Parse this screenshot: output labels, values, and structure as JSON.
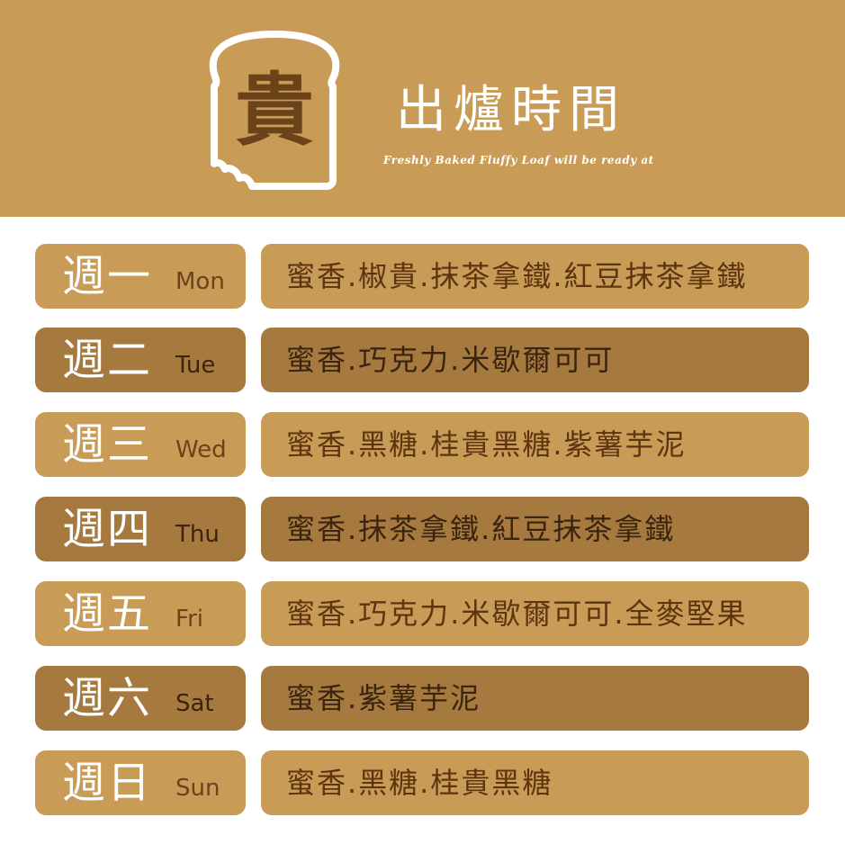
{
  "header": {
    "logo_char": "貴",
    "title": "出爐時間",
    "subtitle": "Freshly Baked Fluffy Loaf will be ready at"
  },
  "schedule": [
    {
      "day_zh": "週一",
      "day_en": "Mon",
      "menu": "蜜香.椒貴.抹茶拿鐵.紅豆抹茶拿鐵",
      "tone": "light"
    },
    {
      "day_zh": "週二",
      "day_en": "Tue",
      "menu": "蜜香.巧克力.米歇爾可可",
      "tone": "dark"
    },
    {
      "day_zh": "週三",
      "day_en": "Wed",
      "menu": "蜜香.黑糖.桂貴黑糖.紫薯芋泥",
      "tone": "light"
    },
    {
      "day_zh": "週四",
      "day_en": "Thu",
      "menu": "蜜香.抹茶拿鐵.紅豆抹茶拿鐵",
      "tone": "dark"
    },
    {
      "day_zh": "週五",
      "day_en": "Fri",
      "menu": "蜜香.巧克力.米歇爾可可.全麥堅果",
      "tone": "light"
    },
    {
      "day_zh": "週六",
      "day_en": "Sat",
      "menu": "蜜香.紫薯芋泥",
      "tone": "dark"
    },
    {
      "day_zh": "週日",
      "day_en": "Sun",
      "menu": "蜜香.黑糖.桂貴黑糖",
      "tone": "light"
    }
  ],
  "colors": {
    "header_bg": "#c89c57",
    "light_box": "#c89c57",
    "dark_box": "#a67a3f",
    "brand_brown": "#6b431a"
  }
}
